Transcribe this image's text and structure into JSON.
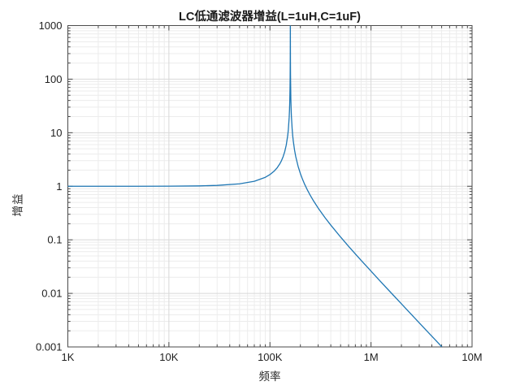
{
  "figure": {
    "background": "#ffffff"
  },
  "chart_data": {
    "type": "line",
    "title": "LC低通滤波器增益(L=1uH,C=1uF)",
    "xlabel": "频率",
    "ylabel": "增益",
    "x_scale": "log",
    "y_scale": "log",
    "x_range_hz": [
      1000,
      10000000
    ],
    "y_range": [
      0.001,
      1000
    ],
    "x_tick_values": [
      1000,
      10000,
      100000,
      1000000,
      10000000
    ],
    "x_tick_labels": [
      "1K",
      "10K",
      "100K",
      "1M",
      "10M"
    ],
    "y_tick_values": [
      1000,
      100,
      10,
      1,
      0.1,
      0.01,
      0.001
    ],
    "y_tick_labels": [
      "1000",
      "100",
      "10",
      "1",
      "0.1",
      "0.01",
      "0.001"
    ],
    "grid": {
      "major": true,
      "minor": true,
      "style": "solid"
    },
    "legend": "none",
    "peak_frequency_hz": 159155,
    "colors": {
      "line": "#1f77b4",
      "grid_major": "#d8d8d8",
      "grid_minor": "#ececec",
      "axis": "#4a4a4a",
      "text": "#1f1f1f"
    },
    "series": [
      {
        "name": "LC低通滤波器增益",
        "color": "#1f77b4",
        "points": [
          [
            1000,
            1.00004
          ],
          [
            2000,
            1.00016
          ],
          [
            5000,
            1.00099
          ],
          [
            10000,
            1.00396
          ],
          [
            20000,
            1.01605
          ],
          [
            30000,
            1.03684
          ],
          [
            50000,
            1.1095
          ],
          [
            70000,
            1.23984
          ],
          [
            90000,
            1.47011
          ],
          [
            100000,
            1.6523
          ],
          [
            110000,
            1.91486
          ],
          [
            118000,
            2.2207
          ],
          [
            125000,
            2.60996
          ],
          [
            130000,
            3.00468
          ],
          [
            135000,
            3.565
          ],
          [
            140000,
            4.42041
          ],
          [
            145000,
            5.8835
          ],
          [
            150000,
            8.9497
          ],
          [
            152000,
            11.378
          ],
          [
            155000,
            19.413
          ],
          [
            156000,
            25.47
          ],
          [
            157000,
            37.187
          ],
          [
            158000,
            69.13
          ],
          [
            158400,
            105.6
          ],
          [
            158800,
            223.9
          ],
          [
            159000,
            510.7
          ],
          [
            159075,
            1000
          ],
          [
            159235,
            1000
          ],
          [
            159300,
            548.6
          ],
          [
            159500,
            230.4
          ],
          [
            159800,
            123.1
          ],
          [
            160000,
            93.92
          ],
          [
            161000,
            42.9
          ],
          [
            162000,
            27.72
          ],
          [
            163000,
            20.46
          ],
          [
            166000,
            11.39
          ],
          [
            168000,
            8.753
          ],
          [
            170000,
            7.101
          ],
          [
            175000,
            4.784
          ],
          [
            180000,
            3.583
          ],
          [
            190000,
            2.352
          ],
          [
            200000,
            1.7267
          ],
          [
            210000,
            1.3495
          ],
          [
            220000,
            1.098
          ],
          [
            235000,
            0.84727
          ],
          [
            250000,
            0.68148
          ],
          [
            270000,
            0.53249
          ],
          [
            300000,
            0.39169
          ],
          [
            350000,
            0.26069
          ],
          [
            400000,
            0.18809
          ],
          [
            500000,
            0.11274
          ],
          [
            600000,
            0.075687
          ],
          [
            700000,
            0.054513
          ],
          [
            800000,
            0.041213
          ],
          [
            1000000,
            0.025989
          ],
          [
            1200000,
            0.017906
          ],
          [
            1500000,
            0.011386
          ],
          [
            2000000,
            0.006373
          ],
          [
            2500000,
            0.004069
          ],
          [
            3000000,
            0.002822
          ],
          [
            3500000,
            0.002072
          ],
          [
            4000000,
            0.001586
          ],
          [
            4500000,
            0.001252
          ],
          [
            5030000,
            0.001
          ]
        ]
      }
    ]
  }
}
